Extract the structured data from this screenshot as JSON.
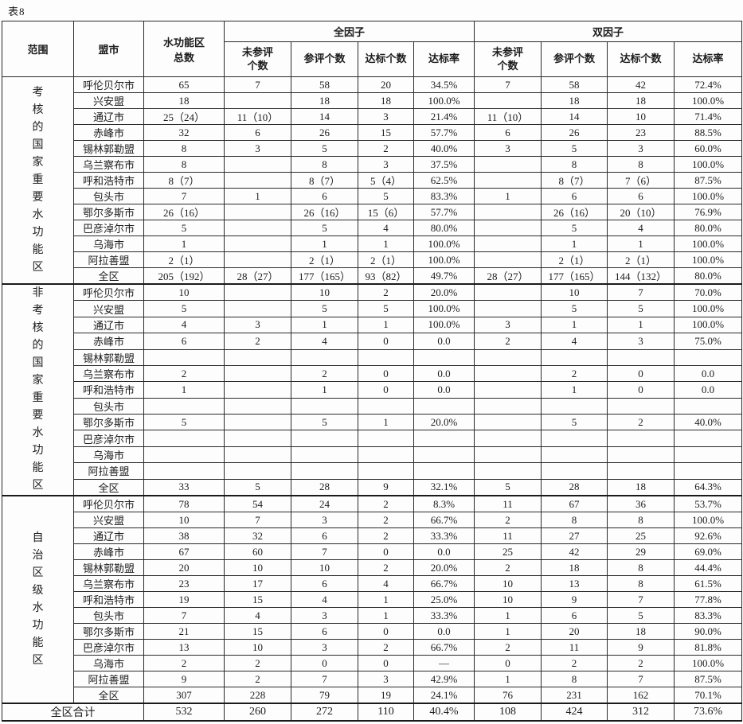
{
  "page": {
    "caption": "表8"
  },
  "table": {
    "header": {
      "scope": "范围",
      "city": "盟市",
      "total": "水功能区\n总数",
      "groups": [
        {
          "label": "全因子",
          "cols": [
            "未参评\n个数",
            "参评个数",
            "达标个数",
            "达标率"
          ]
        },
        {
          "label": "双因子",
          "cols": [
            "未参评\n个数",
            "参评个数",
            "达标个数",
            "达标率"
          ]
        }
      ]
    },
    "blocks": [
      {
        "label": "考核的国家重要水功能区",
        "rows": [
          {
            "city": "呼伦贝尔市",
            "values": [
              "65",
              "7",
              "58",
              "20",
              "34.5%",
              "7",
              "58",
              "42",
              "72.4%"
            ]
          },
          {
            "city": "兴安盟",
            "values": [
              "18",
              "",
              "18",
              "18",
              "100.0%",
              "",
              "18",
              "18",
              "100.0%"
            ]
          },
          {
            "city": "通辽市",
            "values": [
              "25（24）",
              "11（10）",
              "14",
              "3",
              "21.4%",
              "11（10）",
              "14",
              "10",
              "71.4%"
            ]
          },
          {
            "city": "赤峰市",
            "values": [
              "32",
              "6",
              "26",
              "15",
              "57.7%",
              "6",
              "26",
              "23",
              "88.5%"
            ]
          },
          {
            "city": "锡林郭勒盟",
            "values": [
              "8",
              "3",
              "5",
              "2",
              "40.0%",
              "3",
              "5",
              "3",
              "60.0%"
            ]
          },
          {
            "city": "乌兰察布市",
            "values": [
              "8",
              "",
              "8",
              "3",
              "37.5%",
              "",
              "8",
              "8",
              "100.0%"
            ]
          },
          {
            "city": "呼和浩特市",
            "values": [
              "8（7）",
              "",
              "8（7）",
              "5（4）",
              "62.5%",
              "",
              "8（7）",
              "7（6）",
              "87.5%"
            ]
          },
          {
            "city": "包头市",
            "values": [
              "7",
              "1",
              "6",
              "5",
              "83.3%",
              "1",
              "6",
              "6",
              "100.0%"
            ]
          },
          {
            "city": "鄂尔多斯市",
            "values": [
              "26（16）",
              "",
              "26（16）",
              "15（6）",
              "57.7%",
              "",
              "26（16）",
              "20（10）",
              "76.9%"
            ]
          },
          {
            "city": "巴彦淖尔市",
            "values": [
              "5",
              "",
              "5",
              "4",
              "80.0%",
              "",
              "5",
              "4",
              "80.0%"
            ]
          },
          {
            "city": "乌海市",
            "values": [
              "1",
              "",
              "1",
              "1",
              "100.0%",
              "",
              "1",
              "1",
              "100.0%"
            ]
          },
          {
            "city": "阿拉善盟",
            "values": [
              "2（1）",
              "",
              "2（1）",
              "2（1）",
              "100.0%",
              "",
              "2（1）",
              "2（1）",
              "100.0%"
            ]
          },
          {
            "city": "全区",
            "values": [
              "205（192）",
              "28（27）",
              "177（165）",
              "93（82）",
              "49.7%",
              "28（27）",
              "177（165）",
              "144（132）",
              "80.0%"
            ]
          }
        ]
      },
      {
        "label": "非考核的国家重要水功能区",
        "rows": [
          {
            "city": "呼伦贝尔市",
            "values": [
              "10",
              "",
              "10",
              "2",
              "20.0%",
              "",
              "10",
              "7",
              "70.0%"
            ]
          },
          {
            "city": "兴安盟",
            "values": [
              "5",
              "",
              "5",
              "5",
              "100.0%",
              "",
              "5",
              "5",
              "100.0%"
            ]
          },
          {
            "city": "通辽市",
            "values": [
              "4",
              "3",
              "1",
              "1",
              "100.0%",
              "3",
              "1",
              "1",
              "100.0%"
            ]
          },
          {
            "city": "赤峰市",
            "values": [
              "6",
              "2",
              "4",
              "0",
              "0.0",
              "2",
              "4",
              "3",
              "75.0%"
            ]
          },
          {
            "city": "锡林郭勒盟",
            "values": [
              "",
              "",
              "",
              "",
              "",
              "",
              "",
              "",
              ""
            ]
          },
          {
            "city": "乌兰察布市",
            "values": [
              "2",
              "",
              "2",
              "0",
              "0.0",
              "",
              "2",
              "0",
              "0.0"
            ]
          },
          {
            "city": "呼和浩特市",
            "values": [
              "1",
              "",
              "1",
              "0",
              "0.0",
              "",
              "1",
              "0",
              "0.0"
            ]
          },
          {
            "city": "包头市",
            "values": [
              "",
              "",
              "",
              "",
              "",
              "",
              "",
              "",
              ""
            ]
          },
          {
            "city": "鄂尔多斯市",
            "values": [
              "5",
              "",
              "5",
              "1",
              "20.0%",
              "",
              "5",
              "2",
              "40.0%"
            ]
          },
          {
            "city": "巴彦淖尔市",
            "values": [
              "",
              "",
              "",
              "",
              "",
              "",
              "",
              "",
              ""
            ]
          },
          {
            "city": "乌海市",
            "values": [
              "",
              "",
              "",
              "",
              "",
              "",
              "",
              "",
              ""
            ]
          },
          {
            "city": "阿拉善盟",
            "values": [
              "",
              "",
              "",
              "",
              "",
              "",
              "",
              "",
              ""
            ]
          },
          {
            "city": "全区",
            "values": [
              "33",
              "5",
              "28",
              "9",
              "32.1%",
              "5",
              "28",
              "18",
              "64.3%"
            ]
          }
        ]
      },
      {
        "label": "自治区级水功能区",
        "rows": [
          {
            "city": "呼伦贝尔市",
            "values": [
              "78",
              "54",
              "24",
              "2",
              "8.3%",
              "11",
              "67",
              "36",
              "53.7%"
            ]
          },
          {
            "city": "兴安盟",
            "values": [
              "10",
              "7",
              "3",
              "2",
              "66.7%",
              "2",
              "8",
              "8",
              "100.0%"
            ]
          },
          {
            "city": "通辽市",
            "values": [
              "38",
              "32",
              "6",
              "2",
              "33.3%",
              "11",
              "27",
              "25",
              "92.6%"
            ]
          },
          {
            "city": "赤峰市",
            "values": [
              "67",
              "60",
              "7",
              "0",
              "0.0",
              "25",
              "42",
              "29",
              "69.0%"
            ]
          },
          {
            "city": "锡林郭勒盟",
            "values": [
              "20",
              "10",
              "10",
              "2",
              "20.0%",
              "2",
              "18",
              "8",
              "44.4%"
            ]
          },
          {
            "city": "乌兰察布市",
            "values": [
              "23",
              "17",
              "6",
              "4",
              "66.7%",
              "10",
              "13",
              "8",
              "61.5%"
            ]
          },
          {
            "city": "呼和浩特市",
            "values": [
              "19",
              "15",
              "4",
              "1",
              "25.0%",
              "10",
              "9",
              "7",
              "77.8%"
            ]
          },
          {
            "city": "包头市",
            "values": [
              "7",
              "4",
              "3",
              "1",
              "33.3%",
              "1",
              "6",
              "5",
              "83.3%"
            ]
          },
          {
            "city": "鄂尔多斯市",
            "values": [
              "21",
              "15",
              "6",
              "0",
              "0.0",
              "1",
              "20",
              "18",
              "90.0%"
            ]
          },
          {
            "city": "巴彦淖尔市",
            "values": [
              "13",
              "10",
              "3",
              "2",
              "66.7%",
              "2",
              "11",
              "9",
              "81.8%"
            ]
          },
          {
            "city": "乌海市",
            "values": [
              "2",
              "2",
              "0",
              "0",
              "—",
              "0",
              "2",
              "2",
              "100.0%"
            ]
          },
          {
            "city": "阿拉善盟",
            "values": [
              "9",
              "2",
              "7",
              "3",
              "42.9%",
              "1",
              "8",
              "7",
              "87.5%"
            ]
          },
          {
            "city": "全区",
            "values": [
              "307",
              "228",
              "79",
              "19",
              "24.1%",
              "76",
              "231",
              "162",
              "70.1%"
            ]
          }
        ]
      }
    ],
    "footer": {
      "label": "全区合计",
      "values": [
        "532",
        "260",
        "272",
        "110",
        "40.4%",
        "108",
        "424",
        "312",
        "73.6%"
      ]
    }
  }
}
